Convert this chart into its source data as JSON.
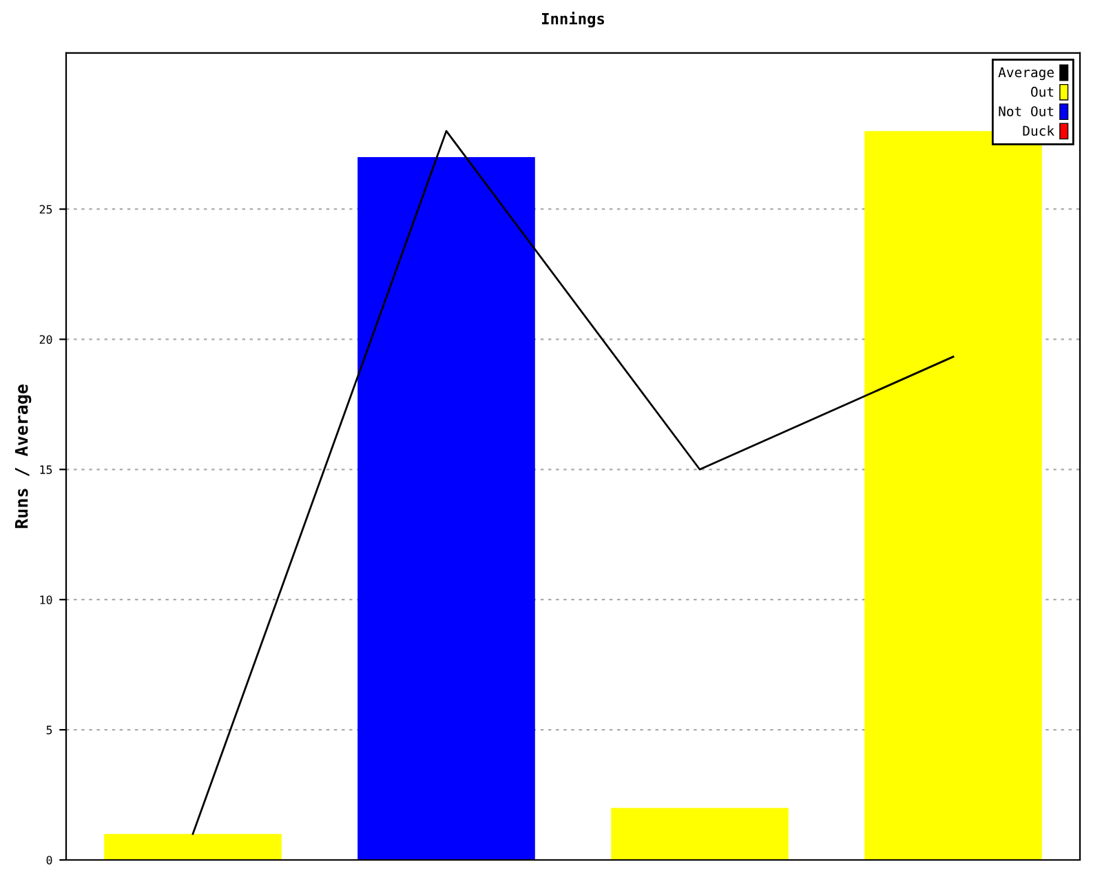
{
  "chart_data": {
    "type": "bar",
    "title": "Innings",
    "ylabel": "Runs / Average",
    "categories": [
      null,
      null,
      null,
      null
    ],
    "series": [
      {
        "name": "Average",
        "type": "line",
        "color": "#000000",
        "values": [
          1,
          28,
          15,
          19.33
        ]
      },
      {
        "name": "Out",
        "color": "#ffff00",
        "values": [
          1,
          null,
          2,
          28
        ]
      },
      {
        "name": "Not Out",
        "color": "#0000ff",
        "values": [
          null,
          27,
          null,
          null
        ]
      },
      {
        "name": "Duck",
        "color": "#ff0000",
        "values": [
          null,
          null,
          null,
          null
        ]
      }
    ],
    "ylim": [
      0,
      31
    ],
    "yticks": [
      0,
      5,
      10,
      15,
      20,
      25
    ],
    "grid": "y",
    "legend": "top right"
  }
}
